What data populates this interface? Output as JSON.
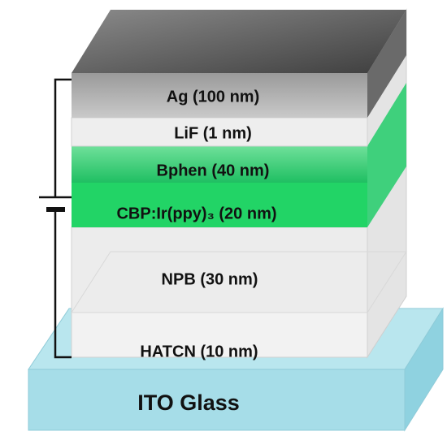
{
  "layers": [
    "Ag (100 nm)",
    "LiF (1 nm)",
    "Bphen (40 nm)",
    "CBP:Ir(ppy)₃ (20 nm)",
    "NPB (30 nm)",
    "HATCN (10 nm)"
  ],
  "substrate": "ITO Glass"
}
